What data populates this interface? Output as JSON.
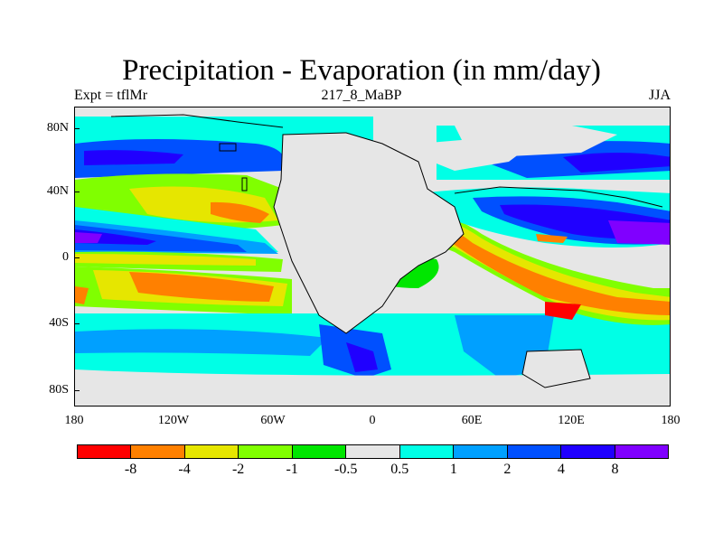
{
  "title": "Precipitation - Evaporation (in mm/day)",
  "subtitle_left": "Expt = tflMr",
  "subtitle_center": "217_8_MaBP",
  "subtitle_right": "JJA",
  "y_tick_labels": [
    "80N",
    "40N",
    "0",
    "40S",
    "80S"
  ],
  "x_tick_labels": [
    "180",
    "120W",
    "60W",
    "0",
    "60E",
    "120E",
    "180"
  ],
  "colorbar": {
    "colors": [
      "#ff0000",
      "#ff8000",
      "#e6e600",
      "#80ff00",
      "#00e600",
      "#e6e6e6",
      "#00ffe6",
      "#00a0ff",
      "#0050ff",
      "#2000ff",
      "#8000ff"
    ],
    "labels": [
      "-8",
      "-4",
      "-2",
      "-1",
      "-0.5",
      "0.5",
      "1",
      "2",
      "4",
      "8"
    ]
  },
  "chart_data": {
    "type": "heatmap",
    "title": "Precipitation - Evaporation (in mm/day)",
    "variable": "P-E",
    "units": "mm/day",
    "season": "JJA",
    "experiment": "tflMr",
    "period": "217_8_MaBP",
    "x_range": [
      -180,
      180
    ],
    "y_range": [
      -90,
      90
    ],
    "levels": [
      -8,
      -4,
      -2,
      -1,
      -0.5,
      0.5,
      1,
      2,
      4,
      8
    ],
    "bands": [
      {
        "lat_range": [
          70,
          90
        ],
        "value_mm_day": 0.8
      },
      {
        "lat_range": [
          50,
          70
        ],
        "value_mm_day": 2.5
      },
      {
        "lat_range": [
          25,
          45
        ],
        "value_mm_day": -3.0
      },
      {
        "lat_range": [
          5,
          20
        ],
        "value_mm_day": 5.0
      },
      {
        "lat_range": [
          -5,
          5
        ],
        "value_mm_day": -1.5
      },
      {
        "lat_range": [
          -30,
          -5
        ],
        "value_mm_day": -4.5
      },
      {
        "lat_range": [
          -60,
          -35
        ],
        "value_mm_day": 1.5
      },
      {
        "lat_range": [
          -90,
          -65
        ],
        "value_mm_day": 0.7
      }
    ],
    "grid": false,
    "legend": "bottom colorbar"
  }
}
